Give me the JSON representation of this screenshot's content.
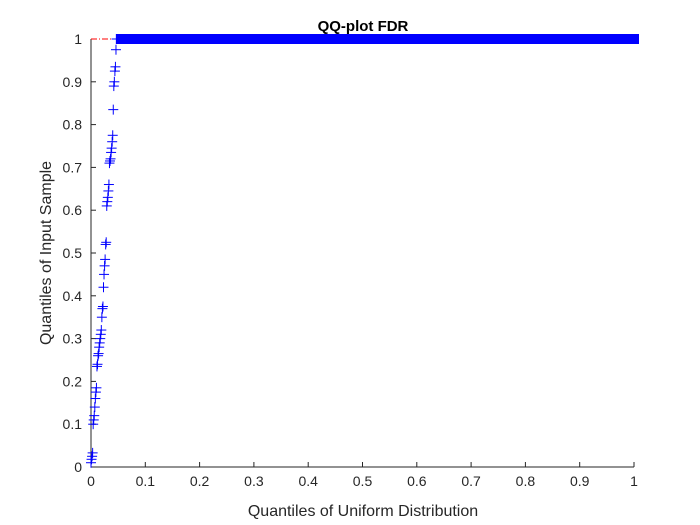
{
  "chart_data": {
    "type": "scatter",
    "title": "QQ-plot FDR",
    "xlabel": "Quantiles of Uniform Distribution",
    "ylabel": "Quantiles of Input Sample",
    "xlim": [
      0,
      1
    ],
    "ylim": [
      0,
      1
    ],
    "x_ticks": [
      "0",
      "0.1",
      "0.2",
      "0.3",
      "0.4",
      "0.5",
      "0.6",
      "0.7",
      "0.8",
      "0.9",
      "1"
    ],
    "y_ticks": [
      "0",
      "0.1",
      "0.2",
      "0.3",
      "0.4",
      "0.5",
      "0.6",
      "0.7",
      "0.8",
      "0.9",
      "1"
    ],
    "grid": false,
    "marker": "+",
    "marker_color": "#0000ff",
    "reference_line_color": "#ff0000",
    "reference_line": {
      "x": [
        0,
        1
      ],
      "y": [
        1,
        1
      ],
      "style": "dash-dot"
    },
    "series": [
      {
        "x": [
          0.0,
          0.001,
          0.002,
          0.003,
          0.004,
          0.005,
          0.006,
          0.007,
          0.008,
          0.009,
          0.01,
          0.011,
          0.012,
          0.013,
          0.014,
          0.015,
          0.016,
          0.017,
          0.018,
          0.019,
          0.02,
          0.021,
          0.022,
          0.023,
          0.024,
          0.025,
          0.026,
          0.027,
          0.028,
          0.029,
          0.03,
          0.031,
          0.032,
          0.033,
          0.034,
          0.035,
          0.036,
          0.037,
          0.038,
          0.039,
          0.04,
          0.041,
          0.042,
          0.043,
          0.044,
          0.045,
          0.046,
          0.047,
          0.048,
          0.049,
          0.05,
          0.051,
          0.052
        ],
        "y": [
          0.01,
          0.018,
          0.025,
          0.033,
          0.1,
          0.11,
          0.12,
          0.14,
          0.16,
          0.175,
          0.185,
          0.235,
          0.24,
          0.26,
          0.265,
          0.28,
          0.29,
          0.3,
          0.31,
          0.32,
          0.35,
          0.37,
          0.375,
          0.42,
          0.45,
          0.47,
          0.485,
          0.52,
          0.525,
          0.61,
          0.62,
          0.63,
          0.645,
          0.66,
          0.71,
          0.715,
          0.72,
          0.735,
          0.745,
          0.76,
          0.775,
          0.835,
          0.89,
          0.9,
          0.925,
          0.935,
          0.975,
          1.0,
          1.0,
          1.0,
          1.0,
          1.0,
          1.0
        ]
      }
    ],
    "dense_band": {
      "x_start": 0.055,
      "x_end": 1.0,
      "y": 1.0
    }
  }
}
